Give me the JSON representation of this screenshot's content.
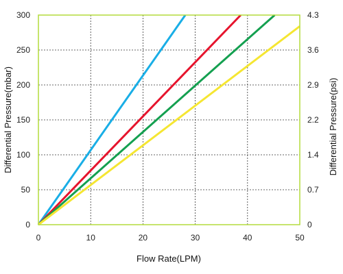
{
  "chart_data": {
    "type": "line",
    "title": "",
    "xlabel": "Flow Rate(LPM)",
    "ylabel": "Differential Pressure(mbar)",
    "y2label": "Differential Pressure(psi)",
    "xlim": [
      0,
      50
    ],
    "ylim": [
      0,
      300
    ],
    "y2lim": [
      0,
      4.3
    ],
    "x_ticks": [
      "0",
      "10",
      "20",
      "30",
      "40",
      "50"
    ],
    "y_ticks": [
      "0",
      "50",
      "100",
      "150",
      "200",
      "250",
      "300"
    ],
    "y2_ticks": [
      "0",
      "0.7",
      "1.4",
      "2.2",
      "2.9",
      "3.6",
      "4.3"
    ],
    "grid": true,
    "series": [
      {
        "color": "#19aee6",
        "x": [
          0,
          28.1
        ],
        "y": [
          0,
          300
        ]
      },
      {
        "color": "#e6142d",
        "x": [
          0,
          38.7
        ],
        "y": [
          0,
          300
        ]
      },
      {
        "color": "#14a050",
        "x": [
          0,
          45.2
        ],
        "y": [
          0,
          300
        ]
      },
      {
        "color": "#f5e632",
        "x": [
          0,
          50
        ],
        "y": [
          0,
          284
        ]
      }
    ],
    "colors": {
      "frame": "#b4dc3c",
      "grid": "#333333"
    }
  }
}
